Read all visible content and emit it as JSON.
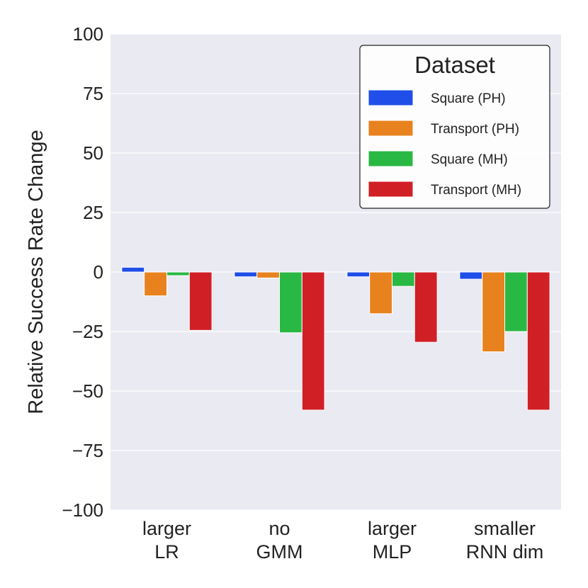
{
  "chart_data": {
    "type": "bar",
    "title": "",
    "xlabel": "",
    "ylabel": "Relative Success Rate Change",
    "ylim": [
      -100,
      100
    ],
    "yticks": [
      100,
      75,
      50,
      25,
      0,
      -25,
      -50,
      -75,
      -100
    ],
    "ytick_labels": [
      "100",
      "75",
      "50",
      "25",
      "0",
      "−25",
      "−50",
      "−75",
      "−100"
    ],
    "categories": [
      [
        "larger",
        "LR"
      ],
      [
        "no",
        "GMM"
      ],
      [
        "larger",
        "MLP"
      ],
      [
        "smaller",
        "RNN dim"
      ]
    ],
    "series": [
      {
        "name": "Square (PH)",
        "color": "#1f4ee8",
        "values": [
          2,
          -2,
          -2,
          -3
        ]
      },
      {
        "name": "Transport (PH)",
        "color": "#e8821e",
        "values": [
          -10,
          -2.5,
          -17.5,
          -33.5
        ]
      },
      {
        "name": "Square (MH)",
        "color": "#2ab844",
        "values": [
          -1.5,
          -25.5,
          -6,
          -25
        ]
      },
      {
        "name": "Transport (MH)",
        "color": "#d11f26",
        "values": [
          -24.5,
          -58,
          -29.5,
          -58
        ]
      }
    ],
    "legend": {
      "title": "Dataset",
      "position": "top-right"
    },
    "grid": true
  }
}
